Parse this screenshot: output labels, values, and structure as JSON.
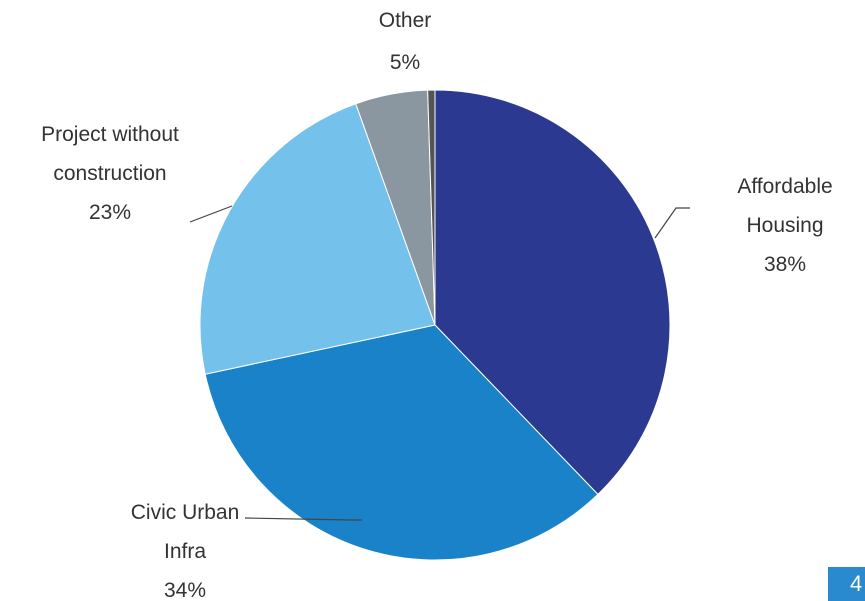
{
  "chart_data": {
    "type": "pie",
    "categories": [
      "Affordable Housing",
      "Civic Urban Infra",
      "Project without construction",
      "Other",
      null
    ],
    "values": [
      38,
      34,
      23,
      5,
      0.5
    ],
    "value_labels": [
      "38%",
      "34%",
      "23%",
      "5%",
      null
    ],
    "colors": [
      "#2b3990",
      "#1a82c8",
      "#74c2ec",
      "#8a96a0",
      "#555555"
    ]
  },
  "page_number": "4"
}
